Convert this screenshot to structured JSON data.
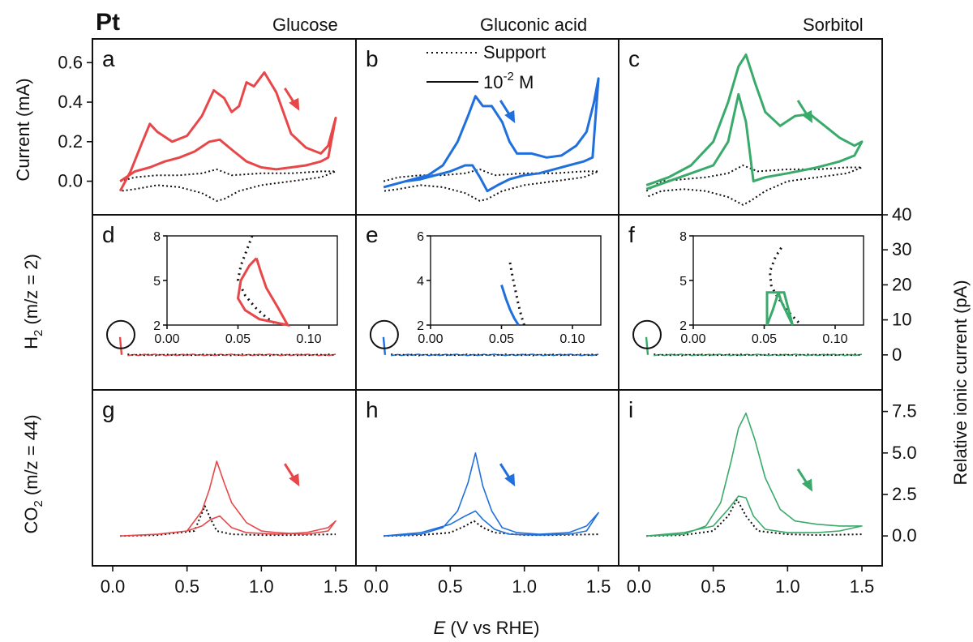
{
  "figure": {
    "material": "Pt",
    "columns": [
      "Glucose",
      "Gluconic acid",
      "Sorbitol"
    ],
    "panel_letters": [
      "a",
      "b",
      "c",
      "d",
      "e",
      "f",
      "g",
      "h",
      "i"
    ],
    "x_label_italic": "E",
    "x_label_rest": " (V vs RHE)",
    "y_left": {
      "current": "Current (mA)",
      "h2_base": "H",
      "h2_sub": "2",
      "h2_rest": " (m/z = 2)",
      "co2_base": "CO",
      "co2_sub": "2",
      "co2_rest": " (m/z = 44)"
    },
    "y_right": "Relative ionic current (pA)",
    "legend": {
      "support": "Support",
      "conc_base": "10",
      "conc_exp": "-2",
      "conc_unit": " M"
    },
    "colors": {
      "glucose": "#e8474a",
      "gluconic": "#1f6fdc",
      "sorbitol": "#3aaa6b",
      "support": "#111111"
    }
  },
  "chart_data": [
    {
      "type": "line",
      "panel": "a",
      "xlim": [
        -0.1,
        1.65
      ],
      "ylim": [
        -0.17,
        0.72
      ],
      "yticks": [
        "0.0",
        "0.2",
        "0.4",
        "0.6"
      ],
      "series": [
        {
          "name": "Support",
          "style": "dotted",
          "x": [
            0.05,
            0.15,
            0.3,
            0.45,
            0.6,
            0.7,
            0.8,
            1.0,
            1.2,
            1.4,
            1.5,
            1.4,
            1.2,
            1.0,
            0.85,
            0.75,
            0.7,
            0.6,
            0.45,
            0.3,
            0.15,
            0.05
          ],
          "y": [
            0.0,
            0.02,
            0.03,
            0.03,
            0.04,
            0.06,
            0.03,
            0.04,
            0.04,
            0.05,
            0.05,
            0.02,
            0.0,
            -0.02,
            -0.05,
            -0.09,
            -0.1,
            -0.06,
            -0.03,
            -0.02,
            -0.04,
            -0.05
          ]
        },
        {
          "name": "10-2 M",
          "style": "solid",
          "x": [
            0.05,
            0.12,
            0.2,
            0.25,
            0.3,
            0.4,
            0.5,
            0.6,
            0.68,
            0.75,
            0.8,
            0.85,
            0.9,
            0.95,
            1.02,
            1.1,
            1.2,
            1.3,
            1.4,
            1.45,
            1.5,
            1.45,
            1.4,
            1.3,
            1.2,
            1.1,
            1.0,
            0.9,
            0.8,
            0.72,
            0.65,
            0.55,
            0.45,
            0.35,
            0.25,
            0.15,
            0.05
          ],
          "y": [
            -0.05,
            0.05,
            0.2,
            0.29,
            0.25,
            0.2,
            0.23,
            0.33,
            0.46,
            0.42,
            0.35,
            0.38,
            0.5,
            0.48,
            0.55,
            0.45,
            0.24,
            0.17,
            0.14,
            0.18,
            0.32,
            0.12,
            0.1,
            0.08,
            0.07,
            0.06,
            0.07,
            0.1,
            0.16,
            0.21,
            0.2,
            0.15,
            0.12,
            0.1,
            0.07,
            0.05,
            0.0
          ]
        }
      ],
      "annotation": "arrow-down-right"
    },
    {
      "type": "line",
      "panel": "b",
      "xlim": [
        -0.1,
        1.65
      ],
      "ylim": [
        -0.17,
        0.72
      ],
      "series": [
        {
          "name": "Support",
          "style": "dotted",
          "x": [
            0.05,
            0.15,
            0.3,
            0.45,
            0.6,
            0.7,
            0.8,
            1.0,
            1.2,
            1.4,
            1.5,
            1.4,
            1.2,
            1.0,
            0.85,
            0.75,
            0.7,
            0.6,
            0.45,
            0.3,
            0.15,
            0.05
          ],
          "y": [
            0.0,
            0.02,
            0.03,
            0.03,
            0.04,
            0.06,
            0.03,
            0.04,
            0.04,
            0.05,
            0.05,
            0.02,
            0.0,
            -0.02,
            -0.05,
            -0.09,
            -0.1,
            -0.06,
            -0.03,
            -0.02,
            -0.04,
            -0.05
          ]
        },
        {
          "name": "10-2 M",
          "style": "solid",
          "x": [
            0.05,
            0.2,
            0.35,
            0.45,
            0.55,
            0.62,
            0.67,
            0.72,
            0.78,
            0.85,
            0.9,
            0.95,
            1.05,
            1.15,
            1.25,
            1.35,
            1.42,
            1.47,
            1.5,
            1.46,
            1.4,
            1.3,
            1.2,
            1.1,
            1.0,
            0.9,
            0.82,
            0.75,
            0.7,
            0.65,
            0.6,
            0.5,
            0.4,
            0.3,
            0.2,
            0.05
          ],
          "y": [
            -0.03,
            0.0,
            0.03,
            0.08,
            0.2,
            0.33,
            0.43,
            0.38,
            0.38,
            0.3,
            0.2,
            0.14,
            0.14,
            0.12,
            0.13,
            0.18,
            0.25,
            0.4,
            0.52,
            0.12,
            0.1,
            0.08,
            0.06,
            0.04,
            0.03,
            0.01,
            -0.02,
            -0.05,
            0.02,
            0.08,
            0.08,
            0.05,
            0.03,
            0.01,
            0.0,
            -0.03
          ]
        }
      ],
      "annotation": "arrow-down-right"
    },
    {
      "type": "line",
      "panel": "c",
      "xlim": [
        -0.1,
        1.65
      ],
      "ylim": [
        -0.17,
        0.72
      ],
      "series": [
        {
          "name": "Support",
          "style": "dotted",
          "x": [
            0.05,
            0.15,
            0.3,
            0.45,
            0.6,
            0.7,
            0.8,
            1.0,
            1.2,
            1.4,
            1.5,
            1.4,
            1.2,
            1.0,
            0.85,
            0.75,
            0.7,
            0.6,
            0.45,
            0.3,
            0.15,
            0.05
          ],
          "y": [
            -0.05,
            0.0,
            0.01,
            0.02,
            0.04,
            0.08,
            0.05,
            0.06,
            0.06,
            0.07,
            0.07,
            0.04,
            0.02,
            0.0,
            -0.05,
            -0.1,
            -0.12,
            -0.08,
            -0.05,
            -0.04,
            -0.05,
            -0.08
          ]
        },
        {
          "name": "10-2 M",
          "style": "solid",
          "x": [
            0.05,
            0.2,
            0.35,
            0.5,
            0.6,
            0.67,
            0.72,
            0.78,
            0.85,
            0.95,
            1.05,
            1.15,
            1.25,
            1.35,
            1.45,
            1.5,
            1.45,
            1.35,
            1.2,
            1.0,
            0.85,
            0.77,
            0.72,
            0.67,
            0.6,
            0.5,
            0.35,
            0.2,
            0.05
          ],
          "y": [
            -0.02,
            0.02,
            0.08,
            0.2,
            0.4,
            0.58,
            0.64,
            0.5,
            0.35,
            0.28,
            0.33,
            0.34,
            0.28,
            0.22,
            0.18,
            0.2,
            0.13,
            0.1,
            0.07,
            0.04,
            0.02,
            0.0,
            0.3,
            0.44,
            0.2,
            0.08,
            0.04,
            0.0,
            -0.04
          ]
        }
      ],
      "annotation": "arrow-down-right"
    },
    {
      "type": "line",
      "panel": "d",
      "y2lim": [
        -10,
        40
      ],
      "y2ticks": [
        "0",
        "10",
        "20",
        "30",
        "40"
      ],
      "inset": {
        "xlim": [
          0,
          0.12
        ],
        "ylim": [
          2,
          8
        ],
        "xticks": [
          "0.00",
          "0.05",
          "0.10"
        ],
        "yticks": [
          "2",
          "5",
          "8"
        ]
      },
      "series": [
        {
          "name": "Support",
          "style": "dotted",
          "inset_x": [
            0.06,
            0.058,
            0.052,
            0.05,
            0.055,
            0.062,
            0.07,
            0.078
          ],
          "inset_y": [
            8.0,
            7.5,
            6.0,
            5.0,
            4.0,
            3.2,
            2.5,
            2.0
          ]
        },
        {
          "name": "10-2 M",
          "style": "solid",
          "inset_x": [
            0.063,
            0.058,
            0.052,
            0.05,
            0.055,
            0.065,
            0.075,
            0.085,
            0.078,
            0.07,
            0.066,
            0.063
          ],
          "inset_y": [
            6.5,
            6.0,
            5.0,
            3.8,
            3.0,
            2.4,
            2.2,
            2.0,
            3.2,
            4.5,
            5.6,
            6.5
          ]
        }
      ]
    },
    {
      "type": "line",
      "panel": "e",
      "inset": {
        "xlim": [
          0,
          0.12
        ],
        "ylim": [
          2,
          6
        ],
        "xticks": [
          "0.00",
          "0.05",
          "0.10"
        ],
        "yticks": [
          "2",
          "4",
          "6"
        ]
      },
      "series": [
        {
          "name": "Support",
          "style": "dotted",
          "inset_x": [
            0.056,
            0.058,
            0.06,
            0.062,
            0.064,
            0.066
          ],
          "inset_y": [
            4.8,
            4.1,
            3.5,
            2.9,
            2.4,
            2.0
          ]
        },
        {
          "name": "10-2 M",
          "style": "solid",
          "inset_x": [
            0.05,
            0.053,
            0.056,
            0.059,
            0.062
          ],
          "inset_y": [
            3.8,
            3.2,
            2.7,
            2.3,
            2.0
          ]
        }
      ]
    },
    {
      "type": "line",
      "panel": "f",
      "inset": {
        "xlim": [
          0,
          0.12
        ],
        "ylim": [
          2,
          8
        ],
        "xticks": [
          "0.00",
          "0.05",
          "0.10"
        ],
        "yticks": [
          "2",
          "5",
          "8"
        ]
      },
      "series": [
        {
          "name": "Support",
          "style": "dotted",
          "inset_x": [
            0.062,
            0.058,
            0.054,
            0.055,
            0.06,
            0.066,
            0.072,
            0.076
          ],
          "inset_y": [
            7.2,
            6.6,
            5.6,
            4.6,
            3.8,
            3.0,
            2.4,
            2.0
          ]
        },
        {
          "name": "10-2 M",
          "style": "solid",
          "inset_x": [
            0.052,
            0.056,
            0.06,
            0.064,
            0.07,
            0.066,
            0.062,
            0.06,
            0.052,
            0.052
          ],
          "inset_y": [
            2.0,
            3.0,
            4.2,
            4.2,
            2.0,
            2.8,
            3.6,
            4.2,
            4.2,
            2.0
          ]
        }
      ]
    },
    {
      "type": "line",
      "panel": "g",
      "y2lim": [
        -1.8,
        8.8
      ],
      "y2ticks": [
        "0.0",
        "2.5",
        "5.0",
        "7.5"
      ],
      "series": [
        {
          "name": "Support",
          "style": "dotted",
          "x": [
            0.05,
            0.3,
            0.55,
            0.62,
            0.66,
            0.7,
            0.8,
            1.0,
            1.2,
            1.5
          ],
          "y": [
            0.0,
            0.05,
            0.3,
            1.8,
            1.0,
            0.3,
            0.1,
            0.05,
            0.05,
            0.1
          ]
        },
        {
          "name": "10-2 M",
          "style": "solid",
          "x": [
            0.05,
            0.3,
            0.5,
            0.6,
            0.65,
            0.7,
            0.75,
            0.8,
            0.9,
            1.0,
            1.1,
            1.3,
            1.45,
            1.5,
            1.45,
            1.3,
            1.1,
            0.9,
            0.8,
            0.72,
            0.66,
            0.6,
            0.5,
            0.3,
            0.05
          ],
          "y": [
            0.0,
            0.1,
            0.3,
            1.5,
            2.8,
            4.5,
            3.2,
            2.0,
            0.8,
            0.3,
            0.2,
            0.1,
            0.3,
            0.9,
            0.5,
            0.2,
            0.1,
            0.2,
            0.5,
            1.2,
            1.0,
            0.6,
            0.3,
            0.1,
            0.0
          ]
        }
      ],
      "annotation": "arrow-down-right"
    },
    {
      "type": "line",
      "panel": "h",
      "series": [
        {
          "name": "Support",
          "style": "dotted",
          "x": [
            0.05,
            0.3,
            0.5,
            0.6,
            0.66,
            0.72,
            0.8,
            1.0,
            1.2,
            1.5
          ],
          "y": [
            0.0,
            0.05,
            0.2,
            0.6,
            0.9,
            0.5,
            0.2,
            0.05,
            0.05,
            0.1
          ]
        },
        {
          "name": "10-2 M",
          "style": "solid",
          "x": [
            0.05,
            0.3,
            0.45,
            0.55,
            0.62,
            0.67,
            0.72,
            0.78,
            0.85,
            0.95,
            1.1,
            1.3,
            1.42,
            1.5,
            1.42,
            1.3,
            1.1,
            0.9,
            0.8,
            0.72,
            0.67,
            0.6,
            0.5,
            0.3,
            0.05
          ],
          "y": [
            0.0,
            0.1,
            0.5,
            1.5,
            3.2,
            5.0,
            3.0,
            1.5,
            0.5,
            0.2,
            0.1,
            0.2,
            0.6,
            1.4,
            0.3,
            0.1,
            0.05,
            0.1,
            0.4,
            1.0,
            1.5,
            1.2,
            0.7,
            0.2,
            0.0
          ]
        }
      ],
      "annotation": "arrow-down-right"
    },
    {
      "type": "line",
      "panel": "i",
      "series": [
        {
          "name": "Support",
          "style": "dotted",
          "x": [
            0.05,
            0.3,
            0.5,
            0.6,
            0.66,
            0.72,
            0.8,
            1.0,
            1.2,
            1.5
          ],
          "y": [
            0.0,
            0.05,
            0.3,
            1.2,
            2.2,
            1.2,
            0.3,
            0.1,
            0.05,
            0.1
          ]
        },
        {
          "name": "10-2 M",
          "style": "solid",
          "x": [
            0.05,
            0.3,
            0.45,
            0.55,
            0.62,
            0.67,
            0.72,
            0.78,
            0.85,
            0.95,
            1.05,
            1.2,
            1.35,
            1.5,
            1.35,
            1.2,
            1.0,
            0.85,
            0.77,
            0.72,
            0.67,
            0.6,
            0.5,
            0.3,
            0.05
          ],
          "y": [
            0.0,
            0.1,
            0.6,
            2.0,
            4.5,
            6.5,
            7.4,
            5.8,
            3.5,
            1.6,
            0.9,
            0.7,
            0.6,
            0.6,
            0.3,
            0.2,
            0.2,
            0.4,
            1.2,
            2.3,
            2.4,
            1.6,
            0.6,
            0.2,
            0.0
          ]
        }
      ],
      "annotation": "arrow-down-right"
    }
  ]
}
